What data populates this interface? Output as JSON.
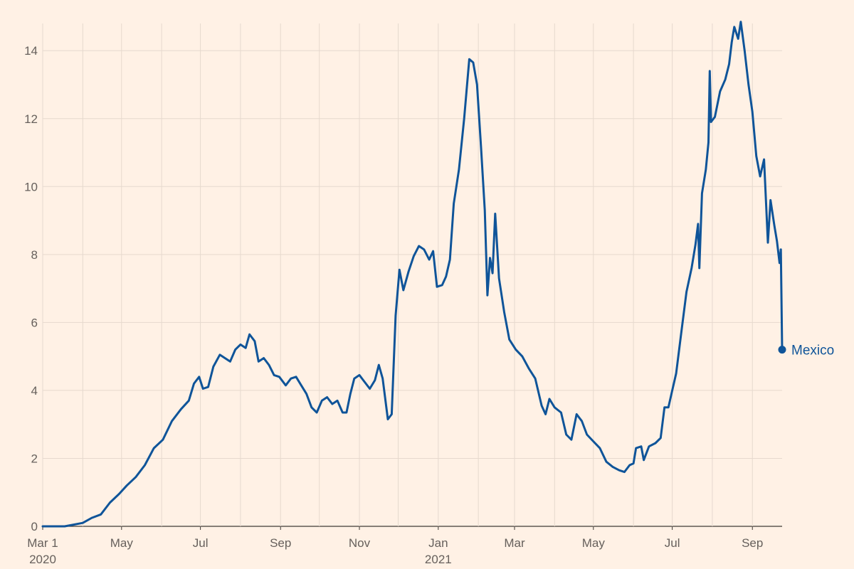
{
  "chart_data": {
    "type": "line",
    "title": "",
    "xlabel": "",
    "ylabel": "",
    "ylim": [
      0,
      14.8
    ],
    "yticks": [
      0,
      2,
      4,
      6,
      8,
      10,
      12,
      14
    ],
    "xlim": [
      "2020-03-01",
      "2021-09-24"
    ],
    "xticks": [
      {
        "date": "2020-03-01",
        "label": "Mar 1",
        "sublabel": "2020"
      },
      {
        "date": "2020-05-01",
        "label": "May",
        "sublabel": ""
      },
      {
        "date": "2020-07-01",
        "label": "Jul",
        "sublabel": ""
      },
      {
        "date": "2020-09-01",
        "label": "Sep",
        "sublabel": ""
      },
      {
        "date": "2020-11-01",
        "label": "Nov",
        "sublabel": ""
      },
      {
        "date": "2021-01-01",
        "label": "Jan",
        "sublabel": "2021"
      },
      {
        "date": "2021-03-01",
        "label": "Mar",
        "sublabel": ""
      },
      {
        "date": "2021-05-01",
        "label": "May",
        "sublabel": ""
      },
      {
        "date": "2021-07-01",
        "label": "Jul",
        "sublabel": ""
      },
      {
        "date": "2021-09-01",
        "label": "Sep",
        "sublabel": ""
      }
    ],
    "grid": true,
    "colors": {
      "background": "#fff1e5",
      "grid": "#e6d9ce",
      "line": "#0f5499",
      "text": "#66605c"
    },
    "series": [
      {
        "name": "Mexico",
        "end_label": "Mexico",
        "points": [
          [
            "2020-03-01",
            0
          ],
          [
            "2020-03-18",
            0
          ],
          [
            "2020-03-25",
            0.05
          ],
          [
            "2020-04-01",
            0.1
          ],
          [
            "2020-04-08",
            0.25
          ],
          [
            "2020-04-15",
            0.35
          ],
          [
            "2020-04-22",
            0.7
          ],
          [
            "2020-04-29",
            0.95
          ],
          [
            "2020-05-05",
            1.2
          ],
          [
            "2020-05-12",
            1.45
          ],
          [
            "2020-05-19",
            1.8
          ],
          [
            "2020-05-26",
            2.3
          ],
          [
            "2020-06-02",
            2.55
          ],
          [
            "2020-06-09",
            3.1
          ],
          [
            "2020-06-16",
            3.45
          ],
          [
            "2020-06-22",
            3.7
          ],
          [
            "2020-06-26",
            4.2
          ],
          [
            "2020-06-30",
            4.4
          ],
          [
            "2020-07-03",
            4.05
          ],
          [
            "2020-07-07",
            4.1
          ],
          [
            "2020-07-11",
            4.7
          ],
          [
            "2020-07-16",
            5.05
          ],
          [
            "2020-07-20",
            4.95
          ],
          [
            "2020-07-24",
            4.85
          ],
          [
            "2020-07-28",
            5.2
          ],
          [
            "2020-08-01",
            5.35
          ],
          [
            "2020-08-05",
            5.25
          ],
          [
            "2020-08-08",
            5.65
          ],
          [
            "2020-08-12",
            5.45
          ],
          [
            "2020-08-15",
            4.85
          ],
          [
            "2020-08-19",
            4.95
          ],
          [
            "2020-08-23",
            4.75
          ],
          [
            "2020-08-27",
            4.45
          ],
          [
            "2020-08-31",
            4.4
          ],
          [
            "2020-09-05",
            4.15
          ],
          [
            "2020-09-09",
            4.35
          ],
          [
            "2020-09-13",
            4.4
          ],
          [
            "2020-09-17",
            4.15
          ],
          [
            "2020-09-21",
            3.9
          ],
          [
            "2020-09-25",
            3.5
          ],
          [
            "2020-09-29",
            3.35
          ],
          [
            "2020-10-03",
            3.7
          ],
          [
            "2020-10-07",
            3.8
          ],
          [
            "2020-10-11",
            3.6
          ],
          [
            "2020-10-15",
            3.7
          ],
          [
            "2020-10-19",
            3.35
          ],
          [
            "2020-10-22",
            3.35
          ],
          [
            "2020-10-25",
            3.9
          ],
          [
            "2020-10-28",
            4.35
          ],
          [
            "2020-11-01",
            4.45
          ],
          [
            "2020-11-04",
            4.3
          ],
          [
            "2020-11-09",
            4.05
          ],
          [
            "2020-11-13",
            4.3
          ],
          [
            "2020-11-16",
            4.75
          ],
          [
            "2020-11-19",
            4.35
          ],
          [
            "2020-11-23",
            3.15
          ],
          [
            "2020-11-26",
            3.3
          ],
          [
            "2020-11-29",
            6.2
          ],
          [
            "2020-12-02",
            7.55
          ],
          [
            "2020-12-05",
            6.95
          ],
          [
            "2020-12-09",
            7.5
          ],
          [
            "2020-12-13",
            7.95
          ],
          [
            "2020-12-17",
            8.25
          ],
          [
            "2020-12-21",
            8.15
          ],
          [
            "2020-12-25",
            7.85
          ],
          [
            "2020-12-28",
            8.1
          ],
          [
            "2020-12-31",
            7.05
          ],
          [
            "2021-01-04",
            7.1
          ],
          [
            "2021-01-07",
            7.35
          ],
          [
            "2021-01-10",
            7.85
          ],
          [
            "2021-01-13",
            9.5
          ],
          [
            "2021-01-17",
            10.5
          ],
          [
            "2021-01-21",
            12.0
          ],
          [
            "2021-01-25",
            13.75
          ],
          [
            "2021-01-28",
            13.65
          ],
          [
            "2021-01-31",
            13.0
          ],
          [
            "2021-02-03",
            11.2
          ],
          [
            "2021-02-06",
            9.3
          ],
          [
            "2021-02-08",
            6.8
          ],
          [
            "2021-02-10",
            7.9
          ],
          [
            "2021-02-12",
            7.45
          ],
          [
            "2021-02-14",
            9.2
          ],
          [
            "2021-02-17",
            7.3
          ],
          [
            "2021-02-21",
            6.3
          ],
          [
            "2021-02-25",
            5.5
          ],
          [
            "2021-03-02",
            5.2
          ],
          [
            "2021-03-07",
            5.0
          ],
          [
            "2021-03-12",
            4.65
          ],
          [
            "2021-03-17",
            4.35
          ],
          [
            "2021-03-22",
            3.55
          ],
          [
            "2021-03-25",
            3.3
          ],
          [
            "2021-03-28",
            3.75
          ],
          [
            "2021-04-01",
            3.5
          ],
          [
            "2021-04-06",
            3.35
          ],
          [
            "2021-04-10",
            2.7
          ],
          [
            "2021-04-14",
            2.55
          ],
          [
            "2021-04-18",
            3.3
          ],
          [
            "2021-04-22",
            3.1
          ],
          [
            "2021-04-26",
            2.7
          ],
          [
            "2021-05-01",
            2.5
          ],
          [
            "2021-05-06",
            2.3
          ],
          [
            "2021-05-11",
            1.9
          ],
          [
            "2021-05-16",
            1.75
          ],
          [
            "2021-05-21",
            1.65
          ],
          [
            "2021-05-25",
            1.6
          ],
          [
            "2021-05-29",
            1.8
          ],
          [
            "2021-06-01",
            1.85
          ],
          [
            "2021-06-03",
            2.3
          ],
          [
            "2021-06-07",
            2.35
          ],
          [
            "2021-06-09",
            1.95
          ],
          [
            "2021-06-13",
            2.35
          ],
          [
            "2021-06-18",
            2.45
          ],
          [
            "2021-06-22",
            2.6
          ],
          [
            "2021-06-25",
            3.5
          ],
          [
            "2021-06-28",
            3.5
          ],
          [
            "2021-07-01",
            4.0
          ],
          [
            "2021-07-04",
            4.5
          ],
          [
            "2021-07-08",
            5.7
          ],
          [
            "2021-07-12",
            6.9
          ],
          [
            "2021-07-16",
            7.6
          ],
          [
            "2021-07-19",
            8.3
          ],
          [
            "2021-07-21",
            8.9
          ],
          [
            "2021-07-22",
            7.6
          ],
          [
            "2021-07-24",
            9.8
          ],
          [
            "2021-07-27",
            10.5
          ],
          [
            "2021-07-29",
            11.3
          ],
          [
            "2021-07-30",
            13.4
          ],
          [
            "2021-07-31",
            11.9
          ],
          [
            "2021-08-03",
            12.05
          ],
          [
            "2021-08-07",
            12.8
          ],
          [
            "2021-08-11",
            13.15
          ],
          [
            "2021-08-14",
            13.6
          ],
          [
            "2021-08-16",
            14.25
          ],
          [
            "2021-08-18",
            14.7
          ],
          [
            "2021-08-21",
            14.35
          ],
          [
            "2021-08-23",
            14.85
          ],
          [
            "2021-08-26",
            14.0
          ],
          [
            "2021-08-29",
            13.0
          ],
          [
            "2021-09-01",
            12.2
          ],
          [
            "2021-09-04",
            10.9
          ],
          [
            "2021-09-07",
            10.3
          ],
          [
            "2021-09-10",
            10.8
          ],
          [
            "2021-09-13",
            8.35
          ],
          [
            "2021-09-15",
            9.6
          ],
          [
            "2021-09-18",
            8.85
          ],
          [
            "2021-09-20",
            8.4
          ],
          [
            "2021-09-22",
            7.75
          ],
          [
            "2021-09-23",
            8.15
          ],
          [
            "2021-09-24",
            5.2
          ]
        ]
      }
    ]
  }
}
